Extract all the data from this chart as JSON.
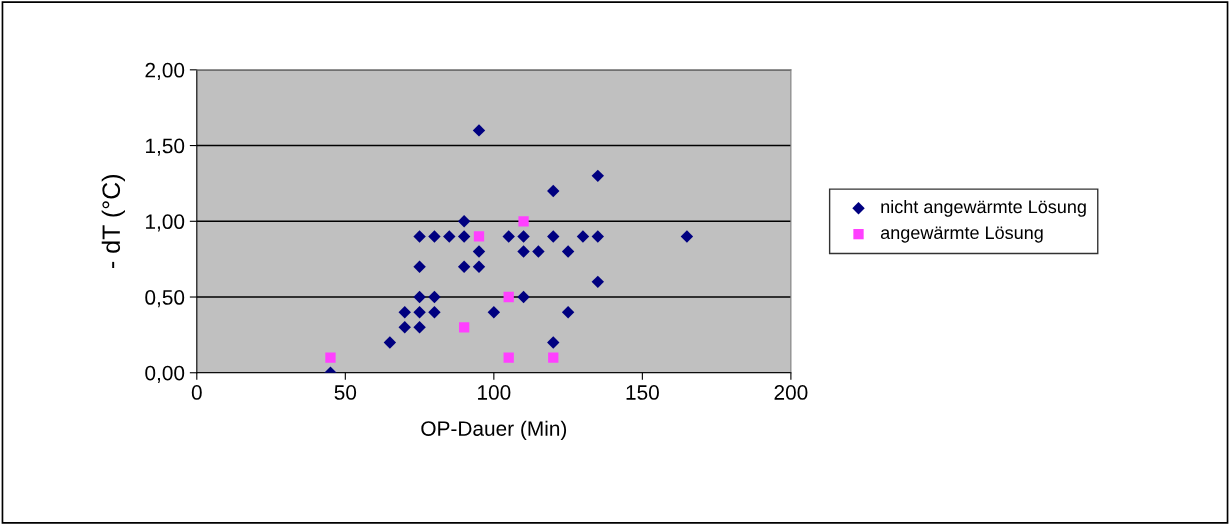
{
  "chart_data": {
    "type": "scatter",
    "xlabel": "OP-Dauer (Min)",
    "ylabel": "- dT (°C)",
    "xlim": [
      0,
      200
    ],
    "xticks": [
      0,
      50,
      100,
      150,
      200
    ],
    "ylim": [
      0,
      2
    ],
    "yticks": [
      {
        "value": 0,
        "label": "0,00"
      },
      {
        "value": 0.5,
        "label": "0,50"
      },
      {
        "value": 1,
        "label": "1,00"
      },
      {
        "value": 1.5,
        "label": "1,50"
      },
      {
        "value": 2,
        "label": "2,00"
      }
    ],
    "grid": "y",
    "legend": "right",
    "series": [
      {
        "name": "nicht angewärmte Lösung",
        "color": "#000080",
        "marker": "diamond",
        "x": [
          45,
          65,
          70,
          70,
          75,
          75,
          75,
          75,
          75,
          80,
          80,
          80,
          85,
          90,
          90,
          90,
          95,
          95,
          95,
          100,
          105,
          110,
          110,
          110,
          115,
          120,
          120,
          120,
          125,
          125,
          130,
          135,
          135,
          135,
          165
        ],
        "values": [
          0,
          0.2,
          0.3,
          0.4,
          0.3,
          0.4,
          0.5,
          0.7,
          0.9,
          0.4,
          0.5,
          0.9,
          0.9,
          0.7,
          0.9,
          1.0,
          0.7,
          0.8,
          1.6,
          0.4,
          0.9,
          0.5,
          0.8,
          0.9,
          0.8,
          0.2,
          0.9,
          1.2,
          0.4,
          0.8,
          0.9,
          0.6,
          0.9,
          1.3,
          0.9
        ]
      },
      {
        "name": "angewärmte Lösung",
        "color": "#ff40ff",
        "marker": "square",
        "x": [
          45,
          90,
          95,
          105,
          105,
          110,
          120
        ],
        "values": [
          0.1,
          0.3,
          0.9,
          0.5,
          0.1,
          1.0,
          0.1
        ]
      }
    ]
  }
}
